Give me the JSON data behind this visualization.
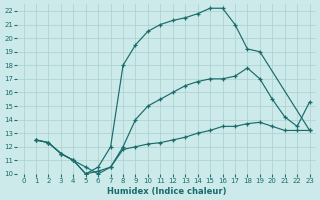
{
  "xlabel": "Humidex (Indice chaleur)",
  "bg_color": "#cceaea",
  "grid_color": "#aacece",
  "line_color": "#1a6b6b",
  "xlim": [
    -0.5,
    23.5
  ],
  "ylim": [
    10,
    22.5
  ],
  "xticks": [
    0,
    1,
    2,
    3,
    4,
    5,
    6,
    7,
    8,
    9,
    10,
    11,
    12,
    13,
    14,
    15,
    16,
    17,
    18,
    19,
    20,
    21,
    22,
    23
  ],
  "yticks": [
    10,
    11,
    12,
    13,
    14,
    15,
    16,
    17,
    18,
    19,
    20,
    21,
    22
  ],
  "curve_top_x": [
    1,
    2,
    3,
    4,
    5,
    6,
    7,
    8,
    9,
    10,
    11,
    12,
    13,
    14,
    15,
    16,
    17,
    18,
    19,
    23
  ],
  "curve_top_y": [
    12.5,
    12.3,
    11.5,
    11.0,
    10.0,
    10.5,
    12.0,
    18.0,
    19.5,
    20.5,
    21.0,
    21.3,
    21.5,
    21.8,
    22.2,
    22.2,
    21.0,
    19.2,
    19.0,
    13.2
  ],
  "curve_mid_x": [
    1,
    2,
    3,
    4,
    5,
    6,
    7,
    8,
    9,
    10,
    11,
    12,
    13,
    14,
    15,
    16,
    17,
    18,
    19,
    20,
    21,
    22,
    23
  ],
  "curve_mid_y": [
    12.5,
    12.3,
    11.5,
    11.0,
    10.5,
    10.0,
    10.5,
    12.0,
    14.0,
    15.0,
    15.5,
    16.0,
    16.5,
    16.8,
    17.0,
    17.0,
    17.2,
    17.8,
    17.0,
    15.5,
    14.2,
    13.5,
    15.3
  ],
  "curve_bot_x": [
    1,
    2,
    3,
    4,
    5,
    6,
    7,
    8,
    9,
    10,
    11,
    12,
    13,
    14,
    15,
    16,
    17,
    18,
    19,
    20,
    21,
    22,
    23
  ],
  "curve_bot_y": [
    12.5,
    12.3,
    11.5,
    11.0,
    10.0,
    10.2,
    10.5,
    11.8,
    12.0,
    12.2,
    12.3,
    12.5,
    12.7,
    13.0,
    13.2,
    13.5,
    13.5,
    13.7,
    13.8,
    13.5,
    13.2,
    13.2,
    13.2
  ]
}
